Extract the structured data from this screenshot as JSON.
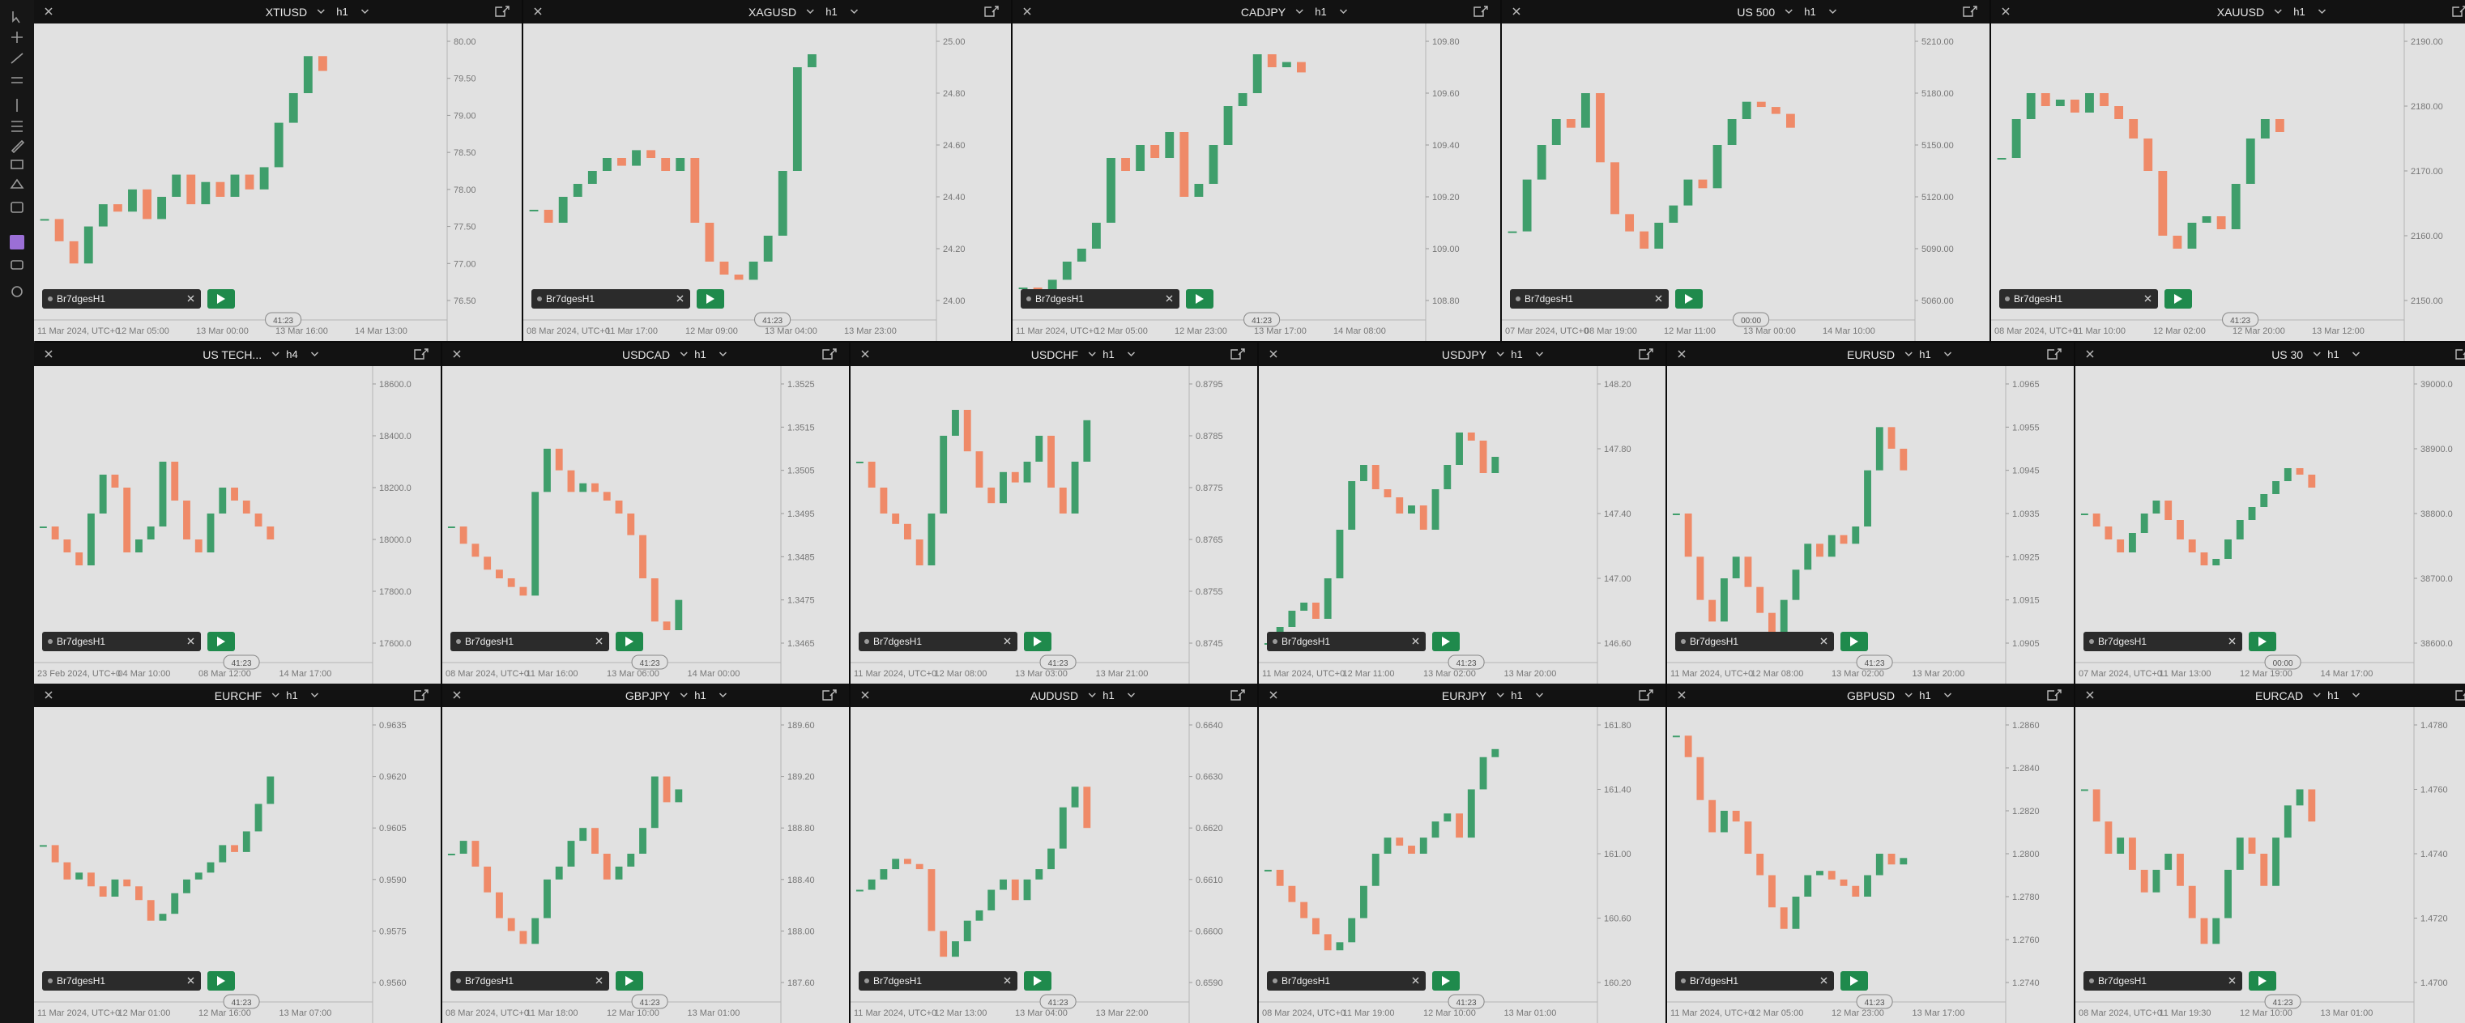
{
  "panels": [
    {
      "symbol": "XTIUSD",
      "timeframe": "h1",
      "strategy": "Br7dgesH1",
      "countdown": "41:23",
      "yticks": [
        {
          "value": 80,
          "label": "80.00"
        },
        {
          "value": 79.5,
          "label": "79.50"
        },
        {
          "value": 79,
          "label": "79.00"
        },
        {
          "value": 78.5,
          "label": "78.50"
        },
        {
          "value": 78,
          "label": "78.00"
        },
        {
          "value": 77.5,
          "label": "77.50"
        },
        {
          "value": 77,
          "label": "77.00"
        },
        {
          "value": 76.5,
          "label": "76.50"
        }
      ],
      "xlabels": [
        "11 Mar 2024, UTC+0",
        "12 Mar 05:00",
        "13 Mar 00:00",
        "13 Mar 16:00",
        "14 Mar 13:00"
      ],
      "closes": [
        77.6,
        77.3,
        77.0,
        77.5,
        77.8,
        77.7,
        78.0,
        77.6,
        77.9,
        78.2,
        77.8,
        78.1,
        77.9,
        78.2,
        78.0,
        78.3,
        78.9,
        79.3,
        79.8,
        79.6
      ]
    },
    {
      "symbol": "XAGUSD",
      "timeframe": "h1",
      "strategy": "Br7dgesH1",
      "countdown": "41:23",
      "yticks": [
        {
          "value": 25,
          "label": "25.00"
        },
        {
          "value": 24.8,
          "label": "24.80"
        },
        {
          "value": 24.6,
          "label": "24.60"
        },
        {
          "value": 24.4,
          "label": "24.40"
        },
        {
          "value": 24.2,
          "label": "24.20"
        },
        {
          "value": 24,
          "label": "24.00"
        }
      ],
      "xlabels": [
        "08 Mar 2024, UTC+0",
        "11 Mar 17:00",
        "12 Mar 09:00",
        "13 Mar 04:00",
        "13 Mar 23:00"
      ],
      "closes": [
        24.35,
        24.3,
        24.4,
        24.45,
        24.5,
        24.55,
        24.52,
        24.58,
        24.55,
        24.5,
        24.55,
        24.3,
        24.15,
        24.1,
        24.08,
        24.15,
        24.25,
        24.5,
        24.9,
        24.95
      ]
    },
    {
      "symbol": "CADJPY",
      "timeframe": "h1",
      "strategy": "Br7dgesH1",
      "countdown": "41:23",
      "yticks": [
        {
          "value": 109.8,
          "label": "109.80"
        },
        {
          "value": 109.6,
          "label": "109.60"
        },
        {
          "value": 109.4,
          "label": "109.40"
        },
        {
          "value": 109.2,
          "label": "109.20"
        },
        {
          "value": 109,
          "label": "109.00"
        },
        {
          "value": 108.8,
          "label": "108.80"
        }
      ],
      "xlabels": [
        "11 Mar 2024, UTC+0",
        "12 Mar 05:00",
        "12 Mar 23:00",
        "13 Mar 17:00",
        "14 Mar 08:00"
      ],
      "closes": [
        108.85,
        108.82,
        108.88,
        108.95,
        109.0,
        109.1,
        109.35,
        109.3,
        109.4,
        109.35,
        109.45,
        109.2,
        109.25,
        109.4,
        109.55,
        109.6,
        109.75,
        109.7,
        109.72,
        109.68
      ]
    },
    {
      "symbol": "US 500",
      "timeframe": "h1",
      "strategy": "Br7dgesH1",
      "countdown": "00:00",
      "yticks": [
        {
          "value": 5210,
          "label": "5210.00"
        },
        {
          "value": 5180,
          "label": "5180.00"
        },
        {
          "value": 5150,
          "label": "5150.00"
        },
        {
          "value": 5120,
          "label": "5120.00"
        },
        {
          "value": 5090,
          "label": "5090.00"
        },
        {
          "value": 5060,
          "label": "5060.00"
        }
      ],
      "xlabels": [
        "07 Mar 2024, UTC+0",
        "08 Mar 19:00",
        "12 Mar 11:00",
        "13 Mar 00:00",
        "14 Mar 10:00"
      ],
      "closes": [
        5100,
        5130,
        5150,
        5165,
        5160,
        5180,
        5140,
        5110,
        5100,
        5090,
        5105,
        5115,
        5130,
        5125,
        5150,
        5165,
        5175,
        5172,
        5168,
        5160
      ]
    },
    {
      "symbol": "XAUUSD",
      "timeframe": "h1",
      "strategy": "Br7dgesH1",
      "countdown": "41:23",
      "yticks": [
        {
          "value": 2190,
          "label": "2190.00"
        },
        {
          "value": 2180,
          "label": "2180.00"
        },
        {
          "value": 2170,
          "label": "2170.00"
        },
        {
          "value": 2160,
          "label": "2160.00"
        },
        {
          "value": 2150,
          "label": "2150.00"
        }
      ],
      "xlabels": [
        "08 Mar 2024, UTC+0",
        "11 Mar 10:00",
        "12 Mar 02:00",
        "12 Mar 20:00",
        "13 Mar 12:00"
      ],
      "closes": [
        2172,
        2178,
        2182,
        2180,
        2181,
        2179,
        2182,
        2180,
        2178,
        2175,
        2170,
        2160,
        2158,
        2162,
        2163,
        2161,
        2168,
        2175,
        2178,
        2176
      ]
    },
    {
      "symbol": "US TECH...",
      "timeframe": "h4",
      "strategy": "Br7dgesH1",
      "countdown": "41:23",
      "yticks": [
        {
          "value": 18600,
          "label": "18600.0"
        },
        {
          "value": 18400,
          "label": "18400.0"
        },
        {
          "value": 18200,
          "label": "18200.0"
        },
        {
          "value": 18000,
          "label": "18000.0"
        },
        {
          "value": 17800,
          "label": "17800.0"
        },
        {
          "value": 17600,
          "label": "17600.0"
        }
      ],
      "xlabels": [
        "23 Feb 2024, UTC+0",
        "04 Mar 10:00",
        "08 Mar 12:00",
        "14 Mar 17:00"
      ],
      "closes": [
        18050,
        18000,
        17950,
        17900,
        18100,
        18250,
        18200,
        17950,
        18000,
        18050,
        18300,
        18150,
        18000,
        17950,
        18100,
        18200,
        18150,
        18100,
        18050,
        18000
      ]
    },
    {
      "symbol": "USDCAD",
      "timeframe": "h1",
      "strategy": "Br7dgesH1",
      "countdown": "41:23",
      "yticks": [
        {
          "value": 1.3525,
          "label": "1.3525"
        },
        {
          "value": 1.3515,
          "label": "1.3515"
        },
        {
          "value": 1.3505,
          "label": "1.3505"
        },
        {
          "value": 1.3495,
          "label": "1.3495"
        },
        {
          "value": 1.3485,
          "label": "1.3485"
        },
        {
          "value": 1.3475,
          "label": "1.3475"
        },
        {
          "value": 1.3465,
          "label": "1.3465"
        }
      ],
      "xlabels": [
        "08 Mar 2024, UTC+0",
        "11 Mar 16:00",
        "13 Mar 06:00",
        "14 Mar 00:00"
      ],
      "closes": [
        1.3492,
        1.3488,
        1.3485,
        1.3482,
        1.348,
        1.3478,
        1.3476,
        1.35,
        1.351,
        1.3505,
        1.35,
        1.3502,
        1.35,
        1.3498,
        1.3495,
        1.349,
        1.348,
        1.347,
        1.3468,
        1.3475
      ]
    },
    {
      "symbol": "USDCHF",
      "timeframe": "h1",
      "strategy": "Br7dgesH1",
      "countdown": "41:23",
      "yticks": [
        {
          "value": 0.8795,
          "label": "0.8795"
        },
        {
          "value": 0.8785,
          "label": "0.8785"
        },
        {
          "value": 0.8775,
          "label": "0.8775"
        },
        {
          "value": 0.8765,
          "label": "0.8765"
        },
        {
          "value": 0.8755,
          "label": "0.8755"
        },
        {
          "value": 0.8745,
          "label": "0.8745"
        }
      ],
      "xlabels": [
        "11 Mar 2024, UTC+0",
        "12 Mar 08:00",
        "13 Mar 03:00",
        "13 Mar 21:00"
      ],
      "closes": [
        0.878,
        0.8775,
        0.877,
        0.8768,
        0.8765,
        0.876,
        0.877,
        0.8785,
        0.879,
        0.8782,
        0.8775,
        0.8772,
        0.8778,
        0.8776,
        0.878,
        0.8785,
        0.8775,
        0.877,
        0.878,
        0.8788
      ]
    },
    {
      "symbol": "USDJPY",
      "timeframe": "h1",
      "strategy": "Br7dgesH1",
      "countdown": "41:23",
      "yticks": [
        {
          "value": 148.2,
          "label": "148.20"
        },
        {
          "value": 147.8,
          "label": "147.80"
        },
        {
          "value": 147.4,
          "label": "147.40"
        },
        {
          "value": 147,
          "label": "147.00"
        },
        {
          "value": 146.6,
          "label": "146.60"
        }
      ],
      "xlabels": [
        "11 Mar 2024, UTC+0",
        "12 Mar 11:00",
        "13 Mar 02:00",
        "13 Mar 20:00"
      ],
      "closes": [
        146.6,
        146.7,
        146.8,
        146.85,
        146.75,
        147.0,
        147.3,
        147.6,
        147.7,
        147.55,
        147.5,
        147.4,
        147.45,
        147.3,
        147.55,
        147.7,
        147.9,
        147.85,
        147.65,
        147.75
      ]
    },
    {
      "symbol": "EURUSD",
      "timeframe": "h1",
      "strategy": "Br7dgesH1",
      "countdown": "41:23",
      "yticks": [
        {
          "value": 1.0965,
          "label": "1.0965"
        },
        {
          "value": 1.0955,
          "label": "1.0955"
        },
        {
          "value": 1.0945,
          "label": "1.0945"
        },
        {
          "value": 1.0935,
          "label": "1.0935"
        },
        {
          "value": 1.0925,
          "label": "1.0925"
        },
        {
          "value": 1.0915,
          "label": "1.0915"
        },
        {
          "value": 1.0905,
          "label": "1.0905"
        }
      ],
      "xlabels": [
        "11 Mar 2024, UTC+0",
        "12 Mar 08:00",
        "13 Mar 02:00",
        "13 Mar 20:00"
      ],
      "closes": [
        1.0935,
        1.0925,
        1.0915,
        1.091,
        1.092,
        1.0925,
        1.0918,
        1.0912,
        1.0905,
        1.0915,
        1.0922,
        1.0928,
        1.0925,
        1.093,
        1.0928,
        1.0932,
        1.0945,
        1.0955,
        1.095,
        1.0945
      ]
    },
    {
      "symbol": "US 30",
      "timeframe": "h1",
      "strategy": "Br7dgesH1",
      "countdown": "00:00",
      "yticks": [
        {
          "value": 39000,
          "label": "39000.0"
        },
        {
          "value": 38900,
          "label": "38900.0"
        },
        {
          "value": 38800,
          "label": "38800.0"
        },
        {
          "value": 38700,
          "label": "38700.0"
        },
        {
          "value": 38600,
          "label": "38600.0"
        }
      ],
      "xlabels": [
        "07 Mar 2024, UTC+0",
        "11 Mar 13:00",
        "12 Mar 19:00",
        "14 Mar 17:00"
      ],
      "closes": [
        38800,
        38780,
        38760,
        38740,
        38770,
        38800,
        38820,
        38790,
        38760,
        38740,
        38720,
        38730,
        38760,
        38790,
        38810,
        38830,
        38850,
        38870,
        38860,
        38840
      ]
    },
    {
      "symbol": "EURCHF",
      "timeframe": "h1",
      "strategy": "Br7dgesH1",
      "countdown": "41:23",
      "yticks": [
        {
          "value": 0.9635,
          "label": "0.9635"
        },
        {
          "value": 0.962,
          "label": "0.9620"
        },
        {
          "value": 0.9605,
          "label": "0.9605"
        },
        {
          "value": 0.959,
          "label": "0.9590"
        },
        {
          "value": 0.9575,
          "label": "0.9575"
        },
        {
          "value": 0.956,
          "label": "0.9560"
        }
      ],
      "xlabels": [
        "11 Mar 2024, UTC+0",
        "12 Mar 01:00",
        "12 Mar 16:00",
        "13 Mar 07:00"
      ],
      "closes": [
        0.96,
        0.9595,
        0.959,
        0.9592,
        0.9588,
        0.9585,
        0.959,
        0.9588,
        0.9584,
        0.9578,
        0.958,
        0.9586,
        0.959,
        0.9592,
        0.9595,
        0.96,
        0.9598,
        0.9604,
        0.9612,
        0.962
      ]
    },
    {
      "symbol": "GBPJPY",
      "timeframe": "h1",
      "strategy": "Br7dgesH1",
      "countdown": "41:23",
      "yticks": [
        {
          "value": 189.6,
          "label": "189.60"
        },
        {
          "value": 189.2,
          "label": "189.20"
        },
        {
          "value": 188.8,
          "label": "188.80"
        },
        {
          "value": 188.4,
          "label": "188.40"
        },
        {
          "value": 188,
          "label": "188.00"
        },
        {
          "value": 187.6,
          "label": "187.60"
        }
      ],
      "xlabels": [
        "08 Mar 2024, UTC+0",
        "11 Mar 18:00",
        "12 Mar 10:00",
        "13 Mar 01:00"
      ],
      "closes": [
        188.6,
        188.7,
        188.5,
        188.3,
        188.1,
        188.0,
        187.9,
        188.1,
        188.4,
        188.5,
        188.7,
        188.8,
        188.6,
        188.4,
        188.5,
        188.6,
        188.8,
        189.2,
        189.0,
        189.1
      ]
    },
    {
      "symbol": "AUDUSD",
      "timeframe": "h1",
      "strategy": "Br7dgesH1",
      "countdown": "41:23",
      "yticks": [
        {
          "value": 0.664,
          "label": "0.6640"
        },
        {
          "value": 0.663,
          "label": "0.6630"
        },
        {
          "value": 0.662,
          "label": "0.6620"
        },
        {
          "value": 0.661,
          "label": "0.6610"
        },
        {
          "value": 0.66,
          "label": "0.6600"
        },
        {
          "value": 0.659,
          "label": "0.6590"
        }
      ],
      "xlabels": [
        "11 Mar 2024, UTC+0",
        "12 Mar 13:00",
        "13 Mar 04:00",
        "13 Mar 22:00"
      ],
      "closes": [
        0.6608,
        0.661,
        0.6612,
        0.6614,
        0.6613,
        0.6612,
        0.66,
        0.6595,
        0.6598,
        0.6602,
        0.6604,
        0.6608,
        0.661,
        0.6606,
        0.661,
        0.6612,
        0.6616,
        0.6624,
        0.6628,
        0.662
      ]
    },
    {
      "symbol": "EURJPY",
      "timeframe": "h1",
      "strategy": "Br7dgesH1",
      "countdown": "41:23",
      "yticks": [
        {
          "value": 161.8,
          "label": "161.80"
        },
        {
          "value": 161.4,
          "label": "161.40"
        },
        {
          "value": 161,
          "label": "161.00"
        },
        {
          "value": 160.6,
          "label": "160.60"
        },
        {
          "value": 160.2,
          "label": "160.20"
        }
      ],
      "xlabels": [
        "08 Mar 2024, UTC+0",
        "11 Mar 19:00",
        "12 Mar 10:00",
        "13 Mar 01:00"
      ],
      "closes": [
        160.9,
        160.8,
        160.7,
        160.6,
        160.5,
        160.4,
        160.45,
        160.6,
        160.8,
        161.0,
        161.1,
        161.05,
        161.0,
        161.1,
        161.2,
        161.25,
        161.1,
        161.4,
        161.6,
        161.65
      ]
    },
    {
      "symbol": "GBPUSD",
      "timeframe": "h1",
      "strategy": "Br7dgesH1",
      "countdown": "41:23",
      "yticks": [
        {
          "value": 1.286,
          "label": "1.2860"
        },
        {
          "value": 1.284,
          "label": "1.2840"
        },
        {
          "value": 1.282,
          "label": "1.2820"
        },
        {
          "value": 1.28,
          "label": "1.2800"
        },
        {
          "value": 1.278,
          "label": "1.2780"
        },
        {
          "value": 1.276,
          "label": "1.2760"
        },
        {
          "value": 1.274,
          "label": "1.2740"
        }
      ],
      "xlabels": [
        "11 Mar 2024, UTC+0",
        "12 Mar 05:00",
        "12 Mar 23:00",
        "13 Mar 17:00"
      ],
      "closes": [
        1.2855,
        1.2845,
        1.2825,
        1.281,
        1.282,
        1.2815,
        1.28,
        1.279,
        1.2775,
        1.2765,
        1.278,
        1.279,
        1.2792,
        1.2788,
        1.2785,
        1.278,
        1.279,
        1.28,
        1.2795,
        1.2798
      ]
    },
    {
      "symbol": "EURCAD",
      "timeframe": "h1",
      "strategy": "Br7dgesH1",
      "countdown": "41:23",
      "yticks": [
        {
          "value": 1.478,
          "label": "1.4780"
        },
        {
          "value": 1.476,
          "label": "1.4760"
        },
        {
          "value": 1.474,
          "label": "1.4740"
        },
        {
          "value": 1.472,
          "label": "1.4720"
        },
        {
          "value": 1.47,
          "label": "1.4700"
        }
      ],
      "xlabels": [
        "08 Mar 2024, UTC+0",
        "11 Mar 19:30",
        "12 Mar 10:00",
        "13 Mar 01:00"
      ],
      "closes": [
        1.476,
        1.475,
        1.474,
        1.4745,
        1.4735,
        1.4728,
        1.4735,
        1.474,
        1.473,
        1.472,
        1.4712,
        1.472,
        1.4735,
        1.4745,
        1.474,
        1.473,
        1.4745,
        1.4755,
        1.476,
        1.475
      ]
    }
  ]
}
